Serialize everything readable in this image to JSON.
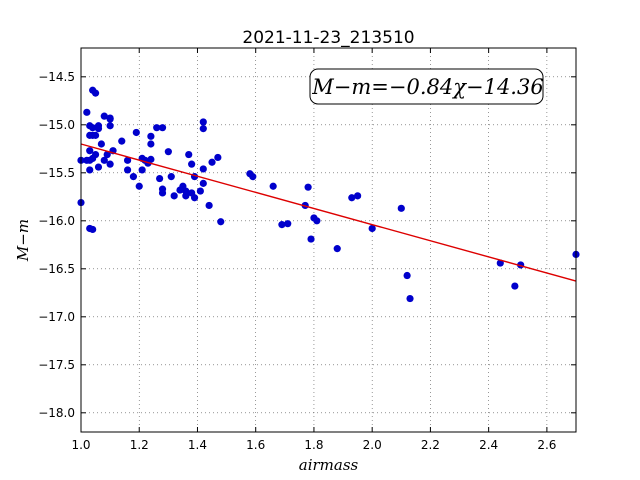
{
  "chart_data": {
    "type": "scatter",
    "title": "2021-11-23_213510",
    "xlabel": "airmass",
    "ylabel": "M−m",
    "xlim": [
      1.0,
      2.7
    ],
    "ylim": [
      -18.2,
      -14.2
    ],
    "y_inverted": true,
    "x_ticks": [
      "1.0",
      "1.2",
      "1.4",
      "1.6",
      "1.8",
      "2.0",
      "2.2",
      "2.4",
      "2.6"
    ],
    "y_ticks": [
      "−14.5",
      "−15.0",
      "−15.5",
      "−16.0",
      "−16.5",
      "−17.0",
      "−17.5",
      "−18.0"
    ],
    "grid": true,
    "annotation": "M−m=−0.84χ−14.36",
    "colors": {
      "points": "#0000cc",
      "fit": "#dd0000"
    },
    "fit": {
      "slope": -0.84,
      "intercept": -14.36
    },
    "points": [
      [
        1.0,
        -15.81
      ],
      [
        1.0,
        -15.37
      ],
      [
        1.02,
        -14.87
      ],
      [
        1.02,
        -15.37
      ],
      [
        1.03,
        -15.37
      ],
      [
        1.03,
        -15.27
      ],
      [
        1.03,
        -15.47
      ],
      [
        1.03,
        -15.11
      ],
      [
        1.03,
        -15.01
      ],
      [
        1.03,
        -16.08
      ],
      [
        1.04,
        -14.64
      ],
      [
        1.04,
        -15.11
      ],
      [
        1.04,
        -15.35
      ],
      [
        1.04,
        -15.03
      ],
      [
        1.04,
        -16.09
      ],
      [
        1.05,
        -14.67
      ],
      [
        1.05,
        -15.11
      ],
      [
        1.05,
        -15.31
      ],
      [
        1.06,
        -15.01
      ],
      [
        1.06,
        -15.44
      ],
      [
        1.06,
        -15.04
      ],
      [
        1.07,
        -15.2
      ],
      [
        1.08,
        -14.91
      ],
      [
        1.08,
        -15.37
      ],
      [
        1.09,
        -15.31
      ],
      [
        1.1,
        -14.93
      ],
      [
        1.1,
        -14.94
      ],
      [
        1.1,
        -15.01
      ],
      [
        1.1,
        -15.41
      ],
      [
        1.11,
        -15.27
      ],
      [
        1.14,
        -15.17
      ],
      [
        1.16,
        -15.37
      ],
      [
        1.16,
        -15.47
      ],
      [
        1.18,
        -15.54
      ],
      [
        1.19,
        -15.08
      ],
      [
        1.2,
        -15.64
      ],
      [
        1.21,
        -15.35
      ],
      [
        1.21,
        -15.47
      ],
      [
        1.22,
        -15.37
      ],
      [
        1.23,
        -15.4
      ],
      [
        1.24,
        -15.12
      ],
      [
        1.24,
        -15.36
      ],
      [
        1.24,
        -15.2
      ],
      [
        1.26,
        -15.03
      ],
      [
        1.27,
        -15.56
      ],
      [
        1.28,
        -15.03
      ],
      [
        1.28,
        -15.71
      ],
      [
        1.28,
        -15.67
      ],
      [
        1.3,
        -15.28
      ],
      [
        1.31,
        -15.54
      ],
      [
        1.32,
        -15.74
      ],
      [
        1.34,
        -15.68
      ],
      [
        1.35,
        -15.64
      ],
      [
        1.36,
        -15.74
      ],
      [
        1.36,
        -15.69
      ],
      [
        1.37,
        -15.31
      ],
      [
        1.38,
        -15.41
      ],
      [
        1.38,
        -15.71
      ],
      [
        1.39,
        -15.54
      ],
      [
        1.39,
        -15.76
      ],
      [
        1.41,
        -15.69
      ],
      [
        1.42,
        -15.61
      ],
      [
        1.42,
        -15.46
      ],
      [
        1.42,
        -14.97
      ],
      [
        1.42,
        -15.04
      ],
      [
        1.44,
        -15.84
      ],
      [
        1.45,
        -15.39
      ],
      [
        1.47,
        -15.34
      ],
      [
        1.48,
        -16.01
      ],
      [
        1.58,
        -15.51
      ],
      [
        1.59,
        -15.54
      ],
      [
        1.66,
        -15.64
      ],
      [
        1.69,
        -16.04
      ],
      [
        1.71,
        -16.03
      ],
      [
        1.77,
        -15.84
      ],
      [
        1.78,
        -15.65
      ],
      [
        1.79,
        -16.19
      ],
      [
        1.8,
        -15.97
      ],
      [
        1.81,
        -16.0
      ],
      [
        1.88,
        -16.29
      ],
      [
        1.93,
        -15.76
      ],
      [
        1.95,
        -15.74
      ],
      [
        2.0,
        -16.08
      ],
      [
        2.1,
        -15.87
      ],
      [
        2.12,
        -16.57
      ],
      [
        2.13,
        -16.81
      ],
      [
        2.44,
        -16.44
      ],
      [
        2.49,
        -16.68
      ],
      [
        2.51,
        -16.46
      ],
      [
        2.7,
        -16.35
      ]
    ]
  }
}
